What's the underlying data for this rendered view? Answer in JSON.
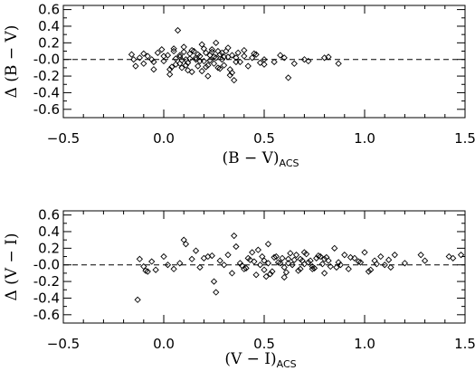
{
  "chart_data": [
    {
      "type": "scatter",
      "xlabel": "(B − V)",
      "xlabel_sub": "ACS",
      "ylabel": "Δ (B − V)",
      "xlim": [
        -0.5,
        1.5
      ],
      "ylim": [
        -0.7,
        0.65
      ],
      "x_ticks": [
        "−0.5",
        "0.0",
        "0.5",
        "1.0",
        "1.5"
      ],
      "y_ticks": [
        "0.6",
        "0.4",
        "0.2",
        "-0.0",
        "-0.2",
        "-0.4",
        "-0.6"
      ],
      "reference_line": {
        "y": 0.0,
        "style": "dashed"
      },
      "marker": "diamond",
      "series": [
        {
          "x": [
            -0.16,
            -0.14,
            -0.12,
            -0.1,
            -0.08,
            -0.06,
            -0.05,
            -0.03,
            -0.01,
            0.0,
            0.02,
            0.03,
            0.05,
            0.06,
            0.07,
            0.08,
            0.09,
            0.1,
            0.11,
            0.12,
            0.13,
            0.14,
            0.15,
            0.16,
            0.17,
            0.18,
            0.19,
            0.2,
            0.21,
            0.22,
            0.23,
            0.24,
            0.25,
            0.26,
            0.27,
            0.28,
            0.29,
            0.3,
            0.31,
            0.32,
            0.33,
            0.34,
            0.35,
            0.36,
            0.37,
            0.38,
            0.4,
            0.42,
            0.44,
            0.46,
            0.48,
            0.5,
            0.55,
            0.6,
            0.65,
            0.7,
            0.72,
            0.8,
            0.82,
            0.87,
            -0.15,
            -0.1,
            -0.05,
            0.0,
            0.03,
            0.06,
            0.08,
            0.1,
            0.12,
            0.14,
            0.16,
            0.18,
            0.2,
            0.22,
            0.24,
            0.26,
            0.28,
            0.3,
            0.32,
            0.34,
            0.36,
            0.4,
            0.45,
            0.5,
            0.58,
            0.62,
            0.05,
            0.09,
            0.13,
            0.17,
            0.21,
            0.25,
            0.29,
            0.33,
            0.08,
            0.19,
            0.27,
            0.04,
            0.11,
            0.23
          ],
          "y": [
            0.06,
            -0.08,
            0.02,
            -0.05,
            0.04,
            0.0,
            -0.03,
            0.08,
            0.12,
            -0.02,
            0.05,
            -0.12,
            0.1,
            -0.06,
            0.35,
            0.03,
            -0.1,
            0.15,
            0.0,
            -0.04,
            0.07,
            -0.15,
            0.1,
            0.02,
            -0.08,
            0.04,
            0.18,
            -0.02,
            0.08,
            -0.2,
            0.05,
            0.12,
            -0.05,
            0.02,
            -0.1,
            0.06,
            0.0,
            -0.07,
            0.1,
            0.03,
            -0.12,
            0.05,
            -0.25,
            0.02,
            0.08,
            -0.03,
            0.04,
            -0.08,
            0.02,
            0.06,
            -0.04,
            0.0,
            -0.03,
            0.02,
            -0.05,
            0.0,
            -0.02,
            0.02,
            0.03,
            -0.05,
            0.0,
            0.07,
            -0.12,
            0.04,
            -0.18,
            0.01,
            -0.05,
            0.09,
            -0.13,
            0.11,
            0.0,
            -0.02,
            0.13,
            -0.07,
            0.09,
            0.2,
            -0.11,
            0.03,
            0.14,
            -0.16,
            -0.03,
            0.11,
            0.07,
            -0.06,
            0.05,
            -0.22,
            0.13,
            -0.01,
            0.01,
            0.06,
            -0.09,
            0.03,
            0.08,
            -0.19,
            0.05,
            -0.14,
            0.1,
            -0.09,
            -0.07,
            -0.01
          ]
        }
      ]
    },
    {
      "type": "scatter",
      "xlabel": "(V − I)",
      "xlabel_sub": "ACS",
      "ylabel": "Δ (V − I)",
      "xlim": [
        -0.5,
        1.5
      ],
      "ylim": [
        -0.7,
        0.65
      ],
      "x_ticks": [
        "−0.5",
        "0.0",
        "0.5",
        "1.0",
        "1.5"
      ],
      "y_ticks": [
        "0.6",
        "0.4",
        "0.2",
        "-0.0",
        "-0.2",
        "-0.4",
        "-0.6"
      ],
      "reference_line": {
        "y": 0.0,
        "style": "dashed"
      },
      "marker": "diamond",
      "series": [
        {
          "x": [
            -0.13,
            -0.12,
            -0.1,
            -0.08,
            -0.06,
            -0.04,
            0.0,
            0.02,
            0.05,
            0.08,
            0.1,
            0.11,
            0.14,
            0.18,
            0.2,
            0.22,
            0.25,
            0.26,
            0.28,
            0.3,
            0.32,
            0.34,
            0.35,
            0.38,
            0.4,
            0.42,
            0.44,
            0.46,
            0.48,
            0.5,
            0.52,
            0.54,
            0.56,
            0.58,
            0.6,
            0.62,
            0.64,
            0.66,
            0.68,
            0.7,
            0.72,
            0.74,
            0.76,
            0.78,
            0.8,
            0.82,
            0.85,
            0.88,
            0.9,
            0.92,
            0.95,
            0.98,
            1.0,
            1.02,
            1.05,
            1.08,
            1.1,
            1.12,
            1.15,
            1.2,
            1.28,
            1.3,
            1.42,
            1.44,
            1.48,
            0.45,
            0.5,
            0.55,
            0.6,
            0.65,
            0.7,
            0.75,
            0.8,
            0.47,
            0.53,
            0.57,
            0.63,
            0.67,
            0.73,
            0.77,
            0.83,
            0.36,
            0.41,
            0.52,
            0.59,
            0.61,
            0.69,
            0.71,
            0.79,
            0.86,
            0.93,
            0.97,
            1.03,
            0.39,
            0.43,
            0.49,
            0.51,
            0.62,
            0.68,
            0.74,
            0.81,
            0.87,
            1.06,
            1.13,
            0.24,
            0.16,
            -0.09
          ],
          "y": [
            -0.42,
            0.07,
            -0.02,
            -0.08,
            0.04,
            -0.06,
            0.1,
            0.0,
            -0.05,
            0.02,
            0.3,
            0.25,
            0.07,
            -0.03,
            0.08,
            0.1,
            -0.2,
            -0.33,
            0.05,
            0.0,
            0.12,
            -0.1,
            0.35,
            0.02,
            -0.05,
            0.08,
            0.15,
            -0.12,
            0.0,
            0.05,
            0.25,
            -0.08,
            0.1,
            0.02,
            -0.15,
            0.07,
            0.0,
            0.12,
            -0.05,
            0.15,
            0.03,
            -0.02,
            0.08,
            0.1,
            -0.1,
            0.05,
            0.2,
            0.0,
            0.12,
            -0.05,
            0.08,
            0.03,
            0.15,
            -0.08,
            0.05,
            0.1,
            0.0,
            0.06,
            0.12,
            0.02,
            0.12,
            0.05,
            0.1,
            0.08,
            0.12,
            0.04,
            -0.06,
            0.09,
            -0.03,
            0.06,
            0.01,
            -0.04,
            0.07,
            0.18,
            -0.11,
            0.03,
            0.14,
            -0.07,
            0.05,
            0.11,
            -0.02,
            0.22,
            -0.04,
            0.02,
            0.08,
            -0.09,
            0.05,
            0.13,
            0.01,
            -0.03,
            0.09,
            0.04,
            -0.06,
            -0.01,
            0.06,
            0.1,
            -0.14,
            0.02,
            0.07,
            -0.05,
            0.09,
            0.03,
            0.01,
            -0.03,
            0.11,
            0.17,
            -0.07
          ]
        }
      ]
    }
  ]
}
